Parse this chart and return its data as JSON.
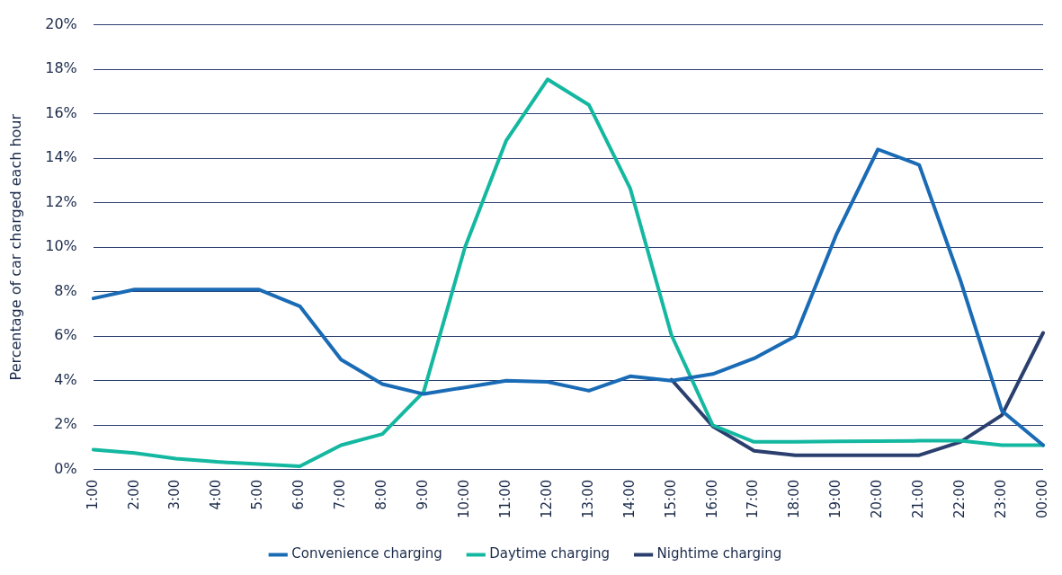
{
  "chart_data": {
    "type": "line",
    "ylabel": "Percentage of car charged each hour",
    "categories": [
      "1:00",
      "2:00",
      "3:00",
      "4:00",
      "5:00",
      "6:00",
      "7:00",
      "8:00",
      "9:00",
      "10:00",
      "11:00",
      "12:00",
      "13:00",
      "14:00",
      "15:00",
      "16:00",
      "17:00",
      "18:00",
      "19:00",
      "20:00",
      "21:00",
      "22:00",
      "23:00",
      "00:00"
    ],
    "series": [
      {
        "name": "Convenience charging",
        "color": "#1a6bb5",
        "values": [
          7.7,
          8.1,
          8.1,
          8.1,
          8.1,
          7.35,
          4.95,
          3.85,
          3.4,
          3.7,
          4.0,
          3.95,
          3.55,
          4.2,
          4.0,
          4.3,
          5.0,
          6.0,
          10.6,
          14.4,
          13.7,
          8.5,
          2.65,
          1.1
        ]
      },
      {
        "name": "Daytime charging",
        "color": "#14b8a0",
        "values": [
          0.9,
          0.75,
          0.5,
          0.35,
          0.25,
          0.15,
          1.1,
          1.6,
          3.5,
          10.0,
          14.8,
          17.55,
          16.4,
          12.65,
          6.05,
          2.0,
          1.25,
          1.25,
          1.27,
          1.28,
          1.3,
          1.3,
          1.1,
          1.1
        ]
      },
      {
        "name": "Nightime charging",
        "color": "#2b3f6e",
        "values": [
          null,
          null,
          null,
          null,
          null,
          null,
          null,
          null,
          null,
          null,
          null,
          null,
          null,
          null,
          4.05,
          1.95,
          0.85,
          0.65,
          0.65,
          0.65,
          0.65,
          1.25,
          2.45,
          6.15
        ]
      }
    ],
    "ylim": [
      0,
      20
    ],
    "yticks": [
      {
        "value": 0,
        "label": "0%"
      },
      {
        "value": 2,
        "label": "2%"
      },
      {
        "value": 4,
        "label": "4%"
      },
      {
        "value": 6,
        "label": "6%"
      },
      {
        "value": 8,
        "label": "8%"
      },
      {
        "value": 10,
        "label": "10%"
      },
      {
        "value": 12,
        "label": "12%"
      },
      {
        "value": 14,
        "label": "14%"
      },
      {
        "value": 16,
        "label": "16%"
      },
      {
        "value": 18,
        "label": "18%"
      },
      {
        "value": 20,
        "label": "20%"
      }
    ],
    "grid": "y",
    "legend": "bottom",
    "marker": "none",
    "line_style": "solid"
  }
}
